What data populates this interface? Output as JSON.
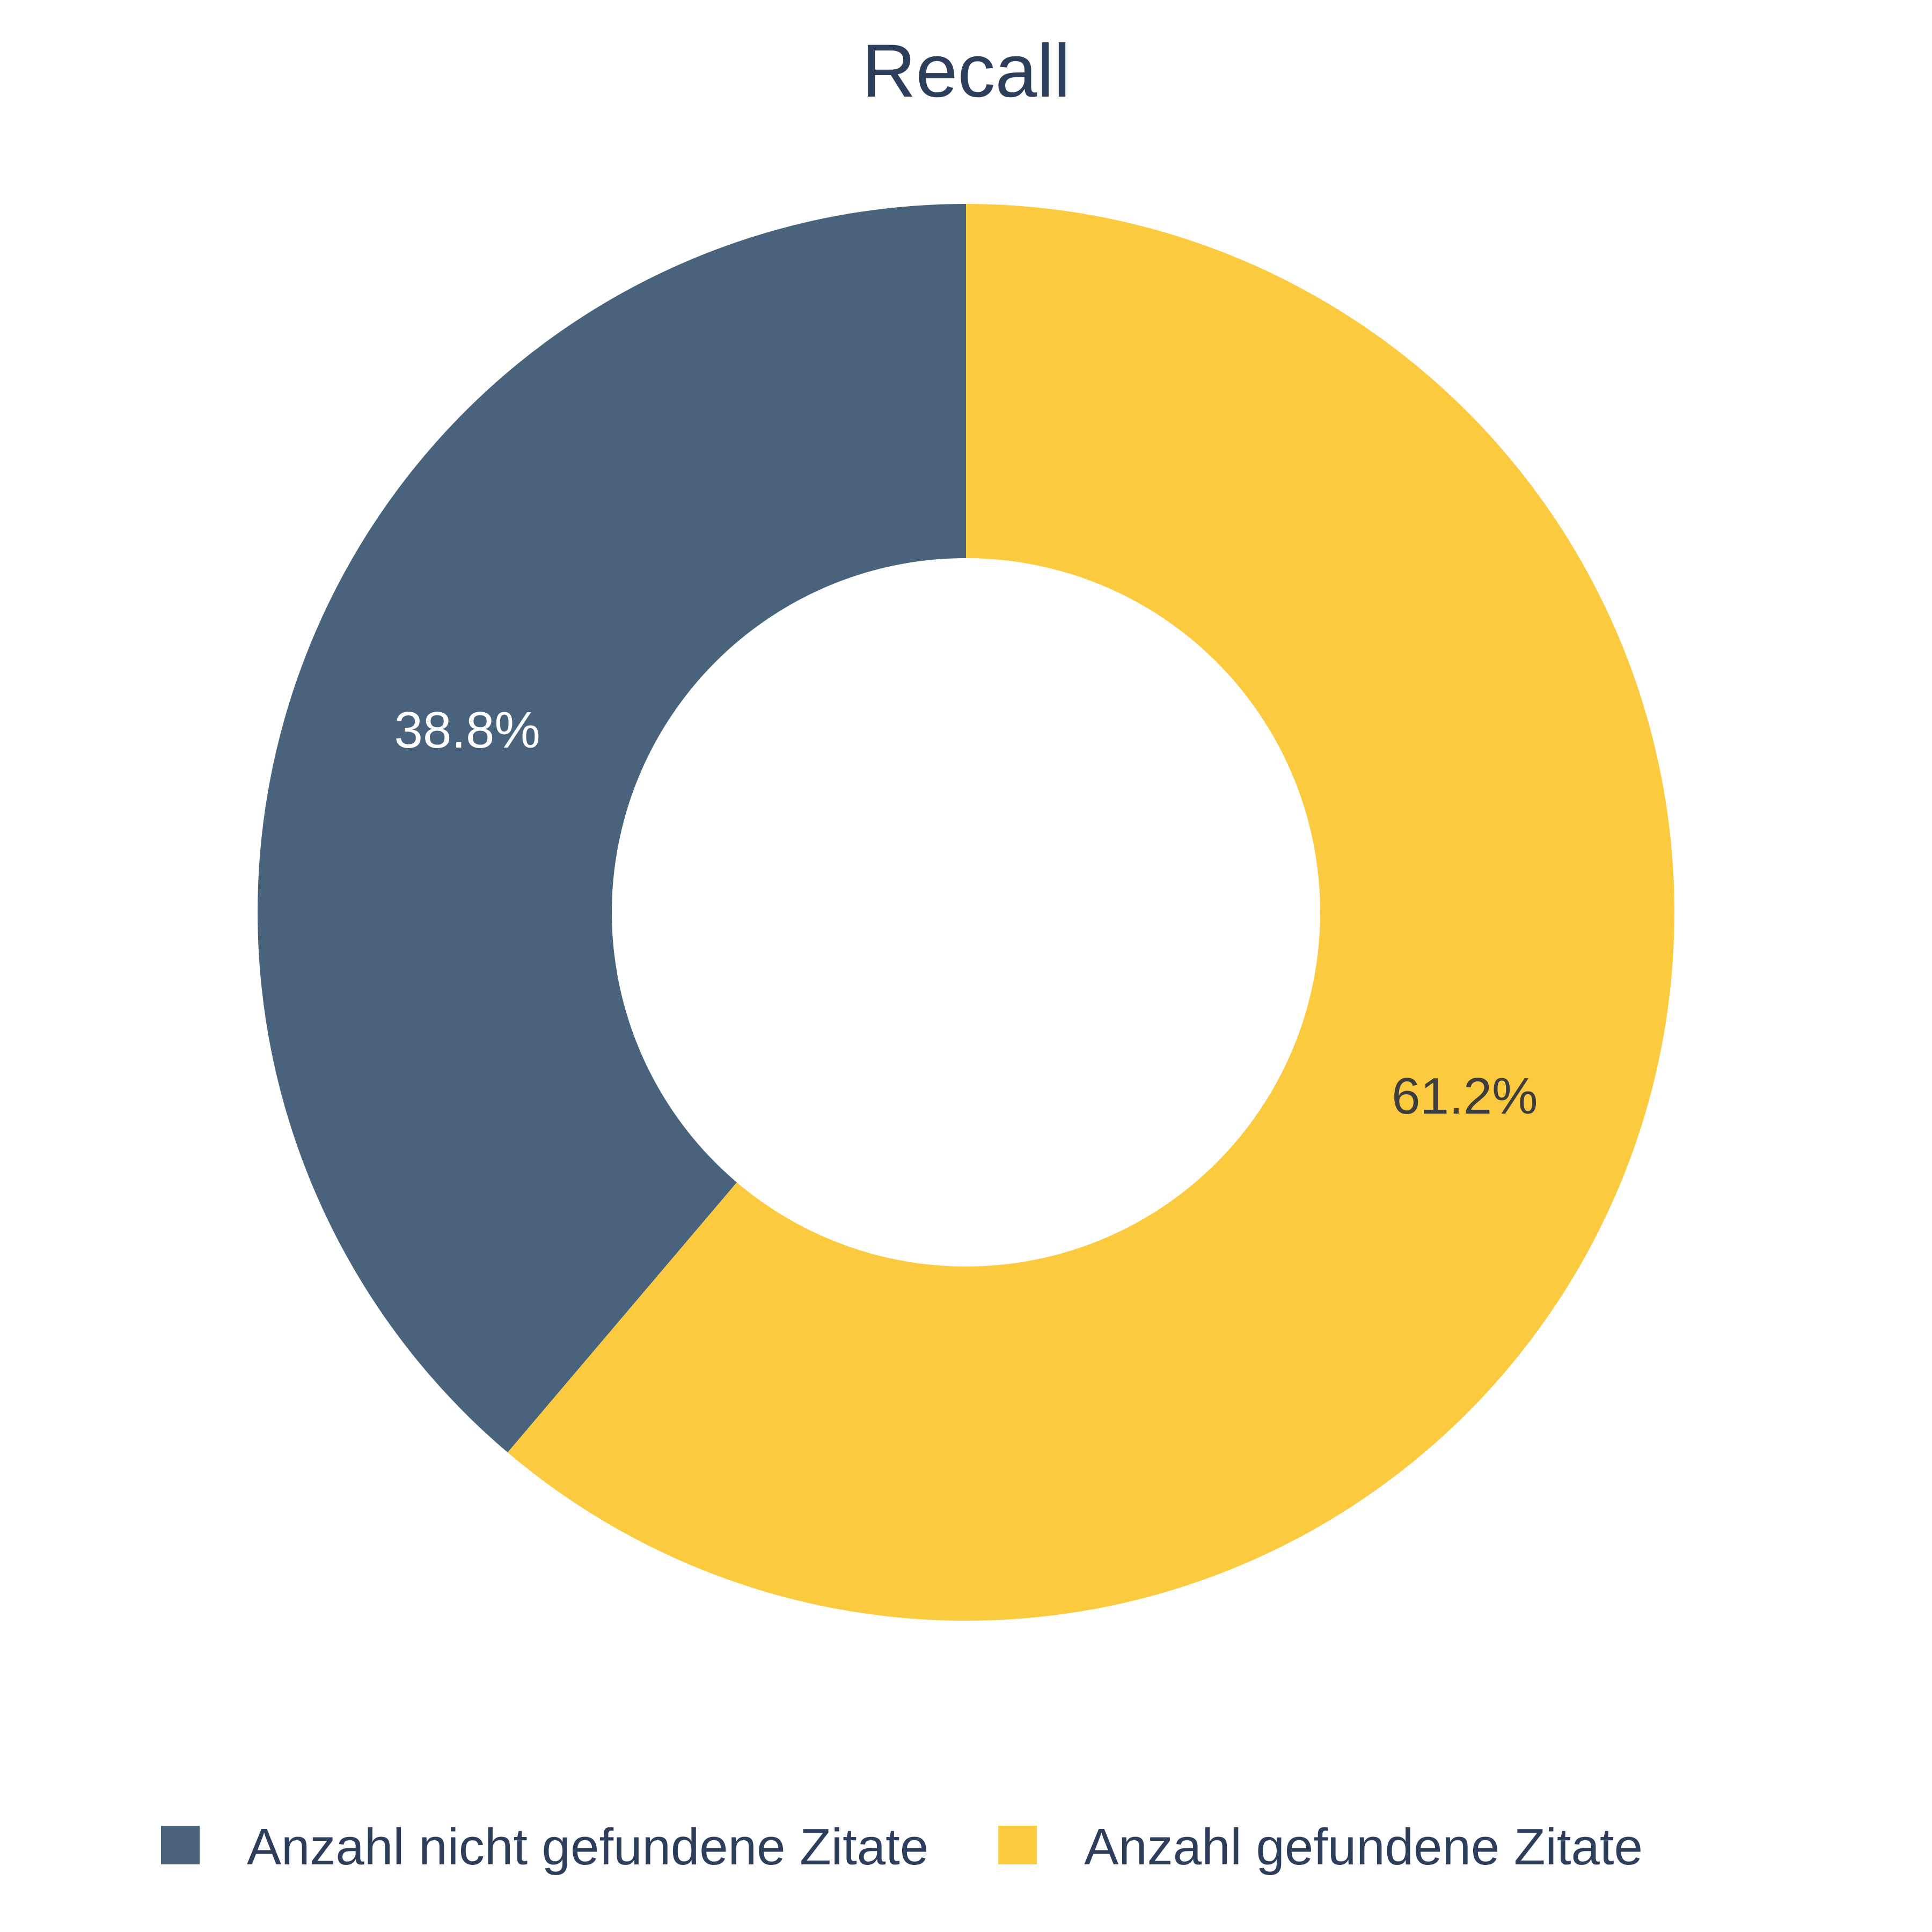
{
  "chart_data": {
    "type": "pie",
    "title": "Recall",
    "donut": true,
    "start": "top",
    "direction": "counterclockwise",
    "slices": [
      {
        "label": "Anzahl nicht gefundene Zitate",
        "value": 38.8,
        "display": "38.8%",
        "color": "#4a637c",
        "label_color": "#ffffff"
      },
      {
        "label": "Anzahl gefundene Zitate",
        "value": 61.2,
        "display": "61.2%",
        "color": "#fcca3f",
        "label_color": "#3d3d3d"
      }
    ],
    "legend_position": "bottom"
  }
}
